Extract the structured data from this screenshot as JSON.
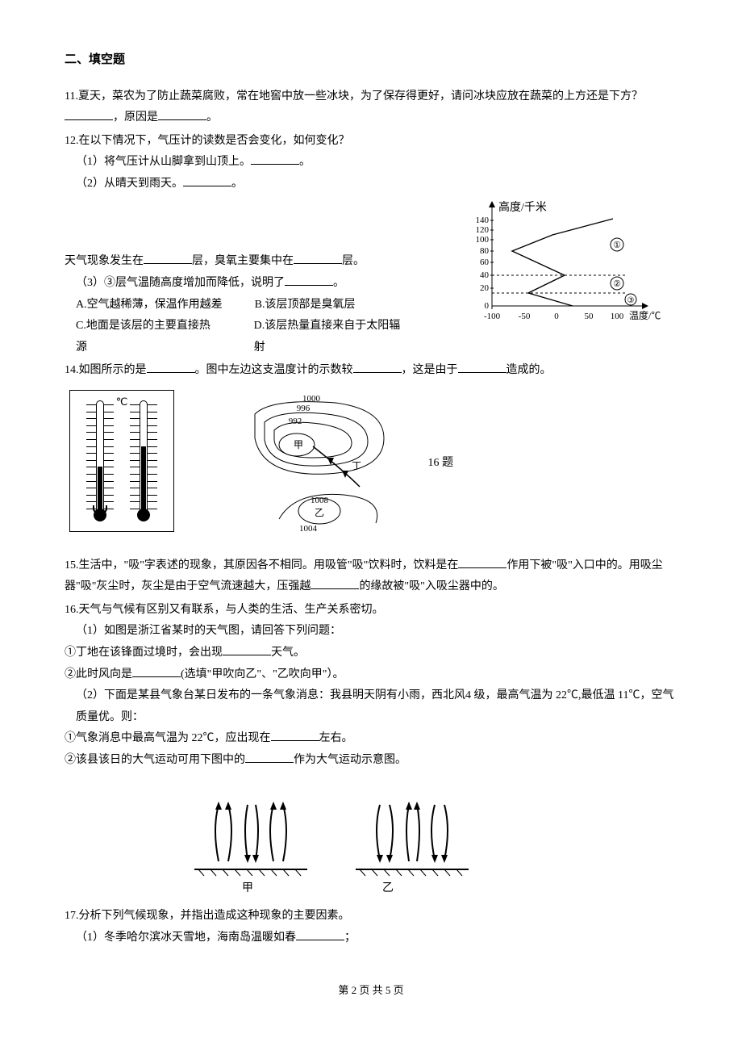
{
  "section_title": "二、填空题",
  "q11": {
    "text_a": "11.夏天，菜农为了防止蔬菜腐败，常在地窖中放一些冰块，为了保存得更好，请问冰块应放在蔬菜的上方还是下方？",
    "text_b": "，原因是",
    "text_c": "。"
  },
  "q12": {
    "stem": "12.在以下情况下，气压计的读数是否会变化，如何变化？",
    "p1_a": "（1）将气压计从山脚拿到山顶上。",
    "p1_b": "。",
    "p2_a": "（2）从晴天到雨天。",
    "p2_b": "。"
  },
  "atmos_chart": {
    "y_label": "高度/千米",
    "y_ticks": [
      "140",
      "120",
      "100",
      "80",
      "60",
      "40",
      "20",
      "0"
    ],
    "x_label": "温度/℃",
    "x_ticks": [
      "-100",
      "-50",
      "0",
      "50",
      "100"
    ],
    "curve_marks": [
      "①",
      "②",
      "③"
    ],
    "axis_color": "#000000",
    "line_color": "#000000",
    "dash_color": "#000000"
  },
  "q13": {
    "line_a1": "天气现象发生在",
    "line_a2": "层，臭氧主要集中在",
    "line_a3": "层。",
    "p3_a": "（3）③层气温随高度增加而降低，说明了",
    "p3_b": "。",
    "opts": {
      "A": "A.空气越稀薄，保温作用越差",
      "B": "B.该层顶部是臭氧层",
      "C": "C.地面是该层的主要直接热源",
      "D": "D.该层热量直接来自于太阳辐射"
    }
  },
  "q14": {
    "a": "14.如图所示的是",
    "b": "。图中左边这支温度计的示数较",
    "c": "，这是由于",
    "d": "造成的。"
  },
  "thermo_fig": {
    "unit": "℃",
    "left_fill_h": 60,
    "right_fill_h": 85,
    "tick_count": 16
  },
  "isobar_fig": {
    "values": [
      "1000",
      "996",
      "992",
      "1008",
      "1004"
    ],
    "labels": {
      "jia": "甲",
      "ding": "丁",
      "yi": "乙"
    },
    "side_label": "16 题"
  },
  "q15": {
    "a": "15.生活中，\"吸\"字表述的现象，其原因各不相同。用吸管\"吸\"饮料时，饮料是在",
    "b": "作用下被\"吸\"入口中的。用吸尘器\"吸\"灰尘时，灰尘是由于空气流速越大，压强越",
    "c": "的缘故被\"吸\"入吸尘器中的。"
  },
  "q16": {
    "stem": "16.天气与气候有区别又有联系，与人类的生活、生产关系密切。",
    "p1": "（1）如图是浙江省某时的天气图，请回答下列问题：",
    "p1_1a": "①丁地在该锋面过境时，会出现",
    "p1_1b": "天气。",
    "p1_2a": "②此时风向是",
    "p1_2b": "(选填\"甲吹向乙\"、\"乙吹向甲\"）。",
    "p2": "（2）下面是某县气象台某日发布的一条气象消息：我县明天阴有小雨，西北风4 级，最高气温为 22℃,最低温 11℃，空气质量优。则：",
    "p2_1a": "①气象消息中最高气温为 22℃，应出现在",
    "p2_1b": "左右。",
    "p2_2a": "②该县该日的大气运动可用下图中的",
    "p2_2b": "作为大气运动示意图。"
  },
  "caption": {
    "jia": "甲",
    "yi": "乙"
  },
  "q17": {
    "stem": "17.分析下列气候现象，并指出造成这种现象的主要因素。",
    "p1_a": "（1）冬季哈尔滨冰天雪地，海南岛温暖如春",
    "p1_b": "；"
  },
  "footer": "第 2 页 共 5 页"
}
